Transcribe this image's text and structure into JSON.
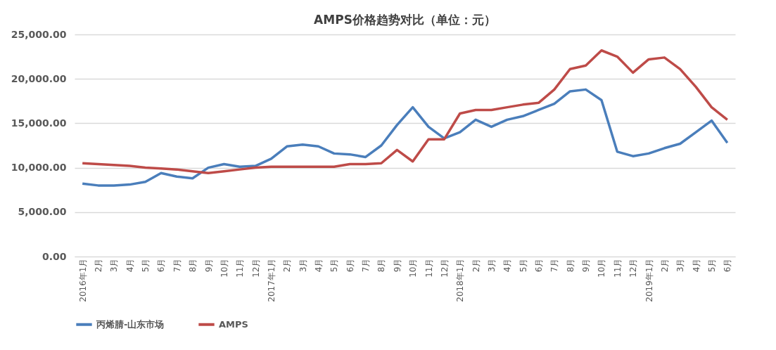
{
  "chart_data": {
    "type": "line",
    "title": "AMPS价格趋势对比（单位：元）",
    "categories": [
      "2016年1月",
      "2月",
      "3月",
      "4月",
      "5月",
      "6月",
      "7月",
      "8月",
      "9月",
      "10月",
      "11月",
      "12月",
      "2017年1月",
      "2月",
      "3月",
      "4月",
      "5月",
      "6月",
      "7月",
      "8月",
      "9月",
      "10月",
      "11月",
      "12月",
      "2018年1月",
      "2月",
      "3月",
      "4月",
      "5月",
      "6月",
      "7月",
      "8月",
      "9月",
      "10月",
      "11月",
      "12月",
      "2019年1月",
      "2月",
      "3月",
      "4月",
      "5月",
      "6月"
    ],
    "series": [
      {
        "name": "丙烯腈-山东市场",
        "color": "#4a7ebb",
        "values": [
          8200,
          8000,
          8000,
          8100,
          8400,
          9400,
          9000,
          8800,
          10000,
          10400,
          10100,
          10200,
          11000,
          12400,
          12600,
          12400,
          11600,
          11500,
          11200,
          12500,
          14800,
          16800,
          14600,
          13300,
          14000,
          15400,
          14600,
          15400,
          15800,
          16500,
          17200,
          18600,
          18800,
          17600,
          11800,
          11300,
          11600,
          12200,
          12700,
          14000,
          15300,
          12800
        ]
      },
      {
        "name": "AMPS",
        "color": "#be4b48",
        "values": [
          10500,
          10400,
          10300,
          10200,
          10000,
          9900,
          9800,
          9600,
          9400,
          9600,
          9800,
          10000,
          10100,
          10100,
          10100,
          10100,
          10100,
          10400,
          10400,
          10500,
          12000,
          10700,
          13200,
          13200,
          16100,
          16500,
          16500,
          16800,
          17100,
          17300,
          18800,
          21100,
          21500,
          23200,
          22500,
          20700,
          22200,
          22400,
          21100,
          19100,
          16800,
          15400
        ]
      }
    ],
    "ylim": [
      0,
      25000
    ],
    "yticks": [
      {
        "value": 0,
        "label": "0.00"
      },
      {
        "value": 5000,
        "label": "5,000.00"
      },
      {
        "value": 10000,
        "label": "10,000.00"
      },
      {
        "value": 15000,
        "label": "15,000.00"
      },
      {
        "value": 20000,
        "label": "20,000.00"
      },
      {
        "value": 25000,
        "label": "25,000.00"
      }
    ],
    "grid": "y",
    "legend": "bottom",
    "marker": "none",
    "line_style": "solid"
  }
}
